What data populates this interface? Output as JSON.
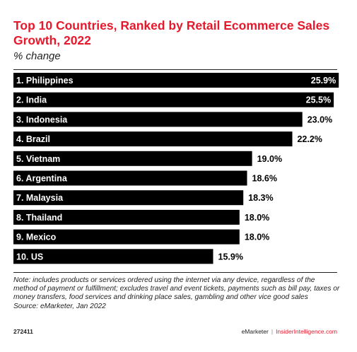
{
  "header": {
    "title": "Top 10 Countries, Ranked by Retail Ecommerce Sales Growth, 2022",
    "subtitle": "% change"
  },
  "chart_data": {
    "type": "bar",
    "orientation": "horizontal",
    "categories": [
      "1. Philippines",
      "2. India",
      "3. Indonesia",
      "4. Brazil",
      "5. Vietnam",
      "6. Argentina",
      "7. Malaysia",
      "8. Thailand",
      "9. Mexico",
      "10. US"
    ],
    "values": [
      25.9,
      25.5,
      23.0,
      22.2,
      19.0,
      18.6,
      18.3,
      18.0,
      18.0,
      15.9
    ],
    "value_labels": [
      "25.9%",
      "25.5%",
      "23.0%",
      "22.2%",
      "19.0%",
      "18.6%",
      "18.3%",
      "18.0%",
      "18.0%",
      "15.9%"
    ],
    "bar_color": "#000000",
    "label_color": "#ffffff",
    "xlim": [
      0,
      26
    ],
    "grid": false,
    "legend": "none"
  },
  "footer": {
    "note": "Note: includes products or services ordered using the internet via any device, regardless of the method of payment or fulfillment; excludes travel and event tickets, payments such as bill pay, taxes or money transfers, food services and drinking place sales, gambling and other vice good sales",
    "source": "Source: eMarketer, Jan 2022",
    "chart_id": "272411",
    "brand_emarketer": "eMarketer",
    "brand_separator": "|",
    "brand_insider": "InsiderIntelligence.com"
  }
}
